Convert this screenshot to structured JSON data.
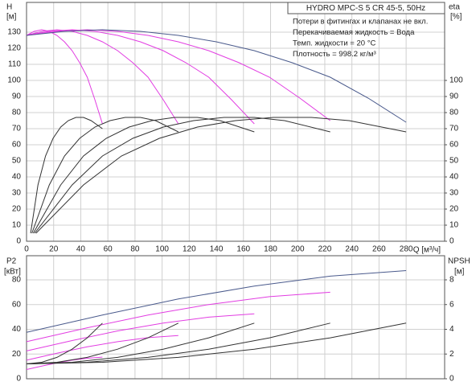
{
  "chart_data": [
    {
      "type": "line",
      "title": "HYDRO MPC-S 5 CR 45-5, 50Hz",
      "annotations": [
        "Потери в фитингах и клапанах не вкл.",
        "Перекачиваемая жидкость = Вода",
        "Темп. жидкости = 20 °C",
        "Плотность = 998.2 кг/м³"
      ],
      "ylabel": "H",
      "yunit": "[м]",
      "y2label": "eta",
      "y2unit": "[%]",
      "xlabel": "Q [м³/ч]",
      "grid": true,
      "xlim": [
        0,
        308.4
      ],
      "xticks": [
        0,
        20,
        40,
        60,
        80,
        100,
        120,
        140,
        160,
        180,
        200,
        220,
        240,
        260,
        280
      ],
      "ylim": [
        0,
        148.5
      ],
      "yticks": [
        0,
        10,
        20,
        30,
        40,
        50,
        60,
        70,
        80,
        90,
        100,
        110,
        120,
        130
      ],
      "y2lim": [
        0,
        148.5
      ],
      "y2ticks": [
        0,
        10,
        20,
        30,
        40,
        50,
        60,
        70,
        80,
        90,
        100
      ],
      "series": [
        {
          "color": "#e23de2",
          "x": [
            0,
            5.6,
            11.2,
            16.8,
            22.4,
            28,
            33.6,
            39.2,
            44.8,
            50.4,
            56
          ],
          "values": [
            128,
            130.5,
            131.5,
            130.5,
            128,
            124,
            118.5,
            111,
            102,
            88,
            73
          ]
        },
        {
          "color": "#e23de2",
          "x": [
            0,
            11.2,
            22.4,
            33.6,
            44.8,
            56,
            67.2,
            78.4,
            89.6,
            100.8,
            112
          ],
          "values": [
            128,
            130.5,
            131.5,
            130.5,
            128,
            124,
            118.5,
            111,
            102,
            88,
            73
          ]
        },
        {
          "color": "#e23de2",
          "x": [
            0,
            16.8,
            33.6,
            50.4,
            67.2,
            84,
            100.8,
            117.6,
            134.4,
            151.2,
            168
          ],
          "values": [
            128,
            130.5,
            131.5,
            130.5,
            128,
            124,
            118.5,
            111,
            102,
            88,
            73
          ]
        },
        {
          "color": "#e23de2",
          "x": [
            0,
            22.4,
            44.8,
            67.2,
            89.6,
            112,
            134.4,
            156.8,
            179.2,
            201.6,
            224
          ],
          "values": [
            128,
            130.5,
            131.5,
            130.5,
            128,
            124,
            118.5,
            111,
            102,
            89,
            75
          ]
        },
        {
          "color": "#4a5a8c",
          "x": [
            0,
            28,
            56,
            84,
            112,
            140,
            168,
            196,
            224,
            252,
            280
          ],
          "values": [
            128,
            130.5,
            131.5,
            130.5,
            128,
            124,
            118.5,
            111,
            102,
            89,
            74
          ]
        },
        {
          "color": "#333333",
          "axis": "y2",
          "x": [
            3,
            8.4,
            14,
            19.6,
            25.2,
            30.8,
            36.4,
            42,
            47.6,
            56
          ],
          "values": [
            5,
            35,
            53,
            64,
            71,
            75,
            77,
            77,
            75,
            70
          ]
        },
        {
          "color": "#333333",
          "axis": "y2",
          "x": [
            4,
            16.8,
            28,
            39.2,
            50.4,
            61.6,
            72.8,
            84,
            95.2,
            112
          ],
          "values": [
            5,
            35,
            53,
            64,
            71,
            75,
            77,
            77,
            75,
            68
          ]
        },
        {
          "color": "#333333",
          "axis": "y2",
          "x": [
            5,
            25.2,
            42,
            58.8,
            75.6,
            92.4,
            109.2,
            126,
            142.8,
            168
          ],
          "values": [
            5,
            35,
            53,
            64,
            71,
            75,
            77,
            77,
            75,
            68
          ]
        },
        {
          "color": "#333333",
          "axis": "y2",
          "x": [
            6,
            33.6,
            56,
            78.4,
            100.8,
            123.2,
            145.6,
            168,
            190.4,
            224
          ],
          "values": [
            5,
            35,
            53,
            64,
            71,
            75,
            77,
            77,
            75,
            68
          ]
        },
        {
          "color": "#333333",
          "axis": "y2",
          "x": [
            7,
            42,
            70,
            98,
            126,
            154,
            182,
            210,
            238,
            280
          ],
          "values": [
            5,
            35,
            53,
            64,
            71,
            75,
            77,
            77,
            75,
            68
          ]
        }
      ]
    },
    {
      "type": "line",
      "ylabel": "P2",
      "yunit": "[кВт]",
      "y2label": "NPSH",
      "y2unit": "[м]",
      "grid": true,
      "xlim": [
        0,
        308.4
      ],
      "xticks": [
        0,
        20,
        40,
        60,
        80,
        100,
        120,
        140,
        160,
        180,
        200,
        220,
        240,
        260,
        280
      ],
      "ylim": [
        0,
        99.5
      ],
      "yticks": [
        0,
        20,
        40,
        60,
        80
      ],
      "y2lim": [
        0,
        9.95
      ],
      "y2ticks": [
        0,
        2,
        4,
        6,
        8
      ],
      "series": [
        {
          "color": "#e23de2",
          "x": [
            0,
            11.2,
            22.4,
            33.6,
            44.8,
            56
          ],
          "values": [
            7.5,
            10.3,
            12.9,
            15,
            16.6,
            17.5
          ]
        },
        {
          "color": "#e23de2",
          "x": [
            0,
            22.4,
            44.8,
            67.2,
            89.6,
            112
          ],
          "values": [
            15,
            20.6,
            25.8,
            30,
            33.2,
            35
          ]
        },
        {
          "color": "#e23de2",
          "x": [
            0,
            33.6,
            67.2,
            100.8,
            134.4,
            168
          ],
          "values": [
            22.5,
            30.9,
            38.7,
            45,
            49.8,
            52.5
          ]
        },
        {
          "color": "#e23de2",
          "x": [
            0,
            44.8,
            89.6,
            134.4,
            179.2,
            224
          ],
          "values": [
            30,
            41.2,
            51.6,
            60,
            66.4,
            70
          ]
        },
        {
          "color": "#4a5a8c",
          "x": [
            0,
            56,
            112,
            168,
            224,
            280
          ],
          "values": [
            37.5,
            51.5,
            64.5,
            75,
            83,
            87.5
          ]
        },
        {
          "color": "#333333",
          "axis": "y2",
          "x": [
            0,
            11.2,
            22.4,
            33.6,
            44.8,
            56
          ],
          "values": [
            1.2,
            1.33,
            1.73,
            2.39,
            3.31,
            4.5
          ]
        },
        {
          "color": "#333333",
          "axis": "y2",
          "x": [
            0,
            22.4,
            44.8,
            67.2,
            89.6,
            112
          ],
          "values": [
            1.2,
            1.33,
            1.73,
            2.39,
            3.31,
            4.5
          ]
        },
        {
          "color": "#333333",
          "axis": "y2",
          "x": [
            0,
            33.6,
            67.2,
            100.8,
            134.4,
            168
          ],
          "values": [
            1.2,
            1.33,
            1.73,
            2.39,
            3.31,
            4.5
          ]
        },
        {
          "color": "#333333",
          "axis": "y2",
          "x": [
            0,
            44.8,
            89.6,
            134.4,
            179.2,
            224
          ],
          "values": [
            1.2,
            1.33,
            1.73,
            2.39,
            3.31,
            4.5
          ]
        },
        {
          "color": "#333333",
          "axis": "y2",
          "x": [
            0,
            56,
            112,
            168,
            224,
            280
          ],
          "values": [
            1.2,
            1.33,
            1.73,
            2.39,
            3.31,
            4.5
          ]
        }
      ]
    }
  ]
}
